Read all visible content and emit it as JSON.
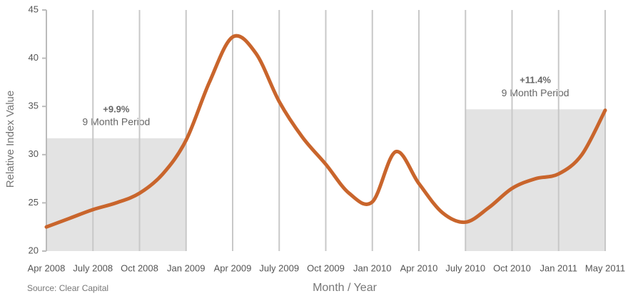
{
  "chart_data": {
    "type": "line",
    "x_label": "Month / Year",
    "y_label": "Relative Index Value",
    "source": "Source: Clear Capital",
    "categories": [
      "Apr 2008",
      null,
      "July 2008",
      null,
      "Oct 2008",
      null,
      "Jan 2009",
      null,
      "Apr 2009",
      null,
      "July 2009",
      null,
      "Oct 2009",
      null,
      "Jan 2010",
      null,
      "Apr 2010",
      null,
      "July 2010",
      null,
      "Oct 2010",
      null,
      "Jan 2011",
      null,
      "May 2011"
    ],
    "series": [
      {
        "name": "Relative Index Value",
        "color": "#c9652c",
        "values": [
          22.5,
          23.4,
          24.3,
          25.0,
          26.0,
          28.0,
          31.5,
          37.5,
          42.2,
          40.5,
          35.5,
          31.8,
          29.0,
          26.0,
          25.1,
          30.3,
          27.0,
          24.0,
          23.0,
          24.5,
          26.5,
          27.5,
          28.0,
          30.0,
          34.6
        ]
      }
    ],
    "ylim": [
      20,
      45
    ],
    "yticks": [
      20,
      25,
      30,
      35,
      40,
      45
    ],
    "grid": true,
    "shaded_regions": [
      {
        "start": "Apr 2008",
        "end": "Jan 2009",
        "top": 31.7,
        "label": "+9.9%",
        "text": "9 Month Period"
      },
      {
        "start": "July 2010",
        "end": "May 2011",
        "top": 34.7,
        "label": "+11.4%",
        "text": "9 Month Period"
      }
    ]
  }
}
